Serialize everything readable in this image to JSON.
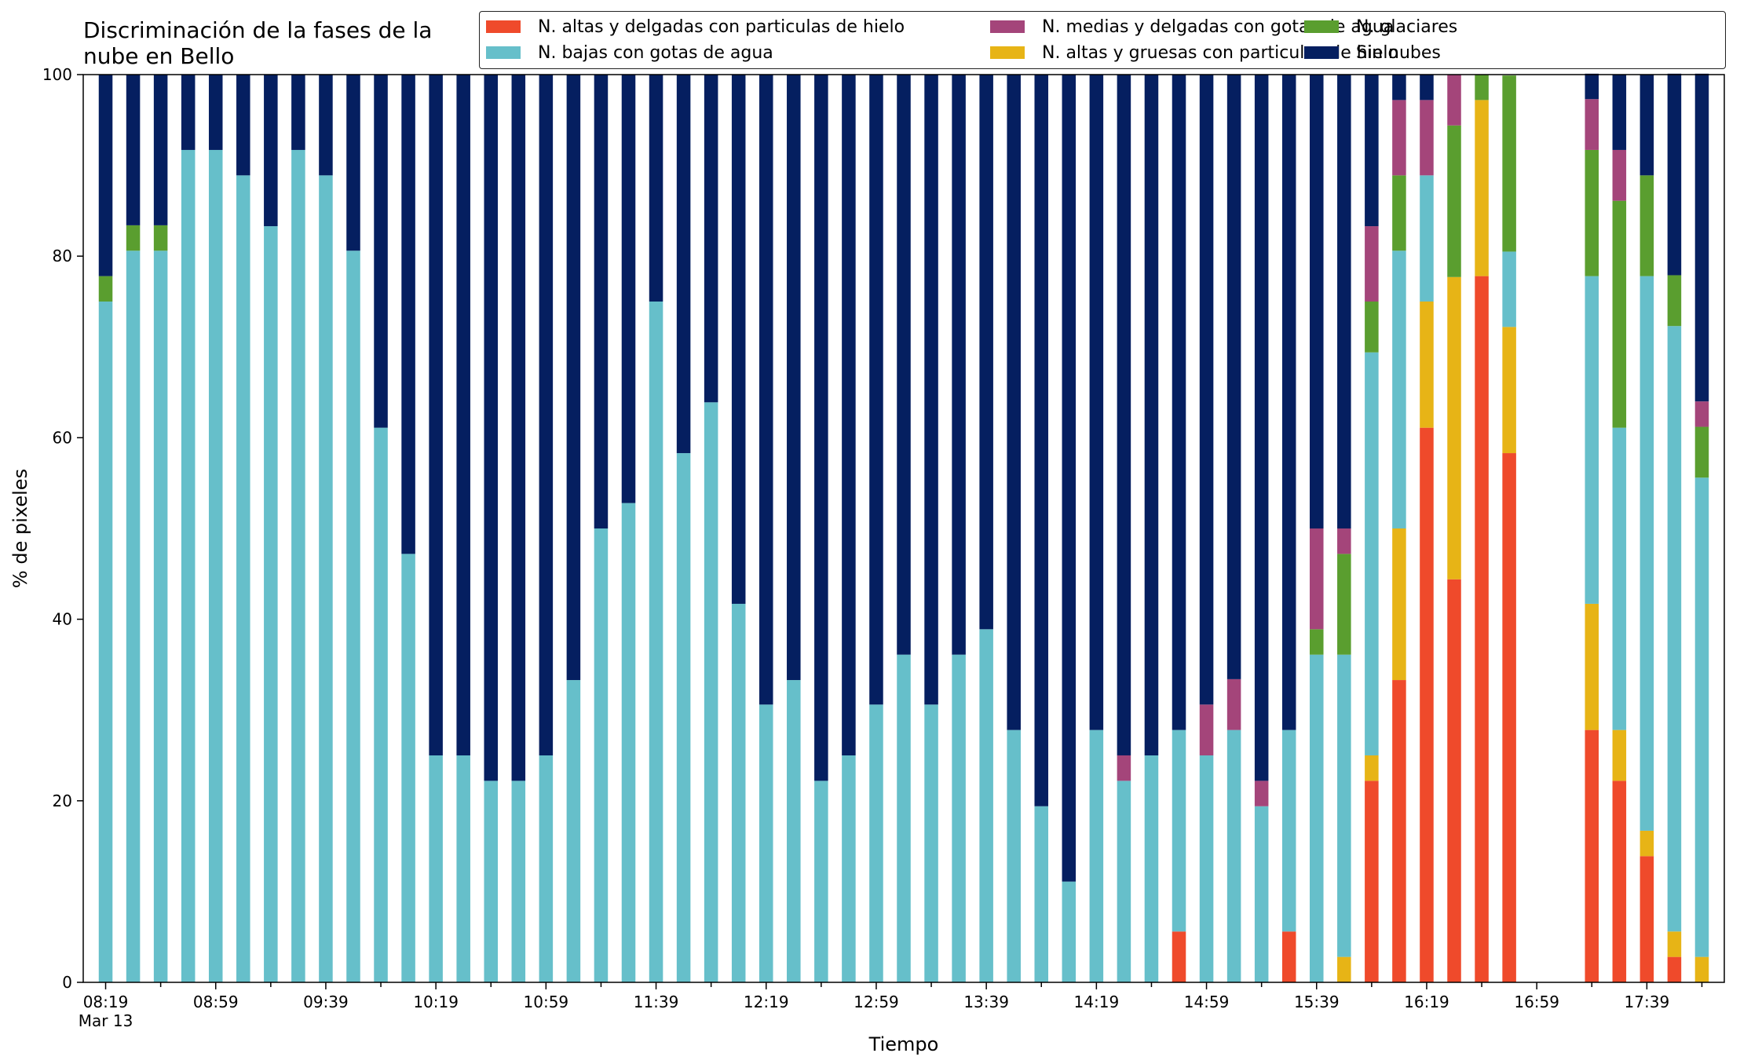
{
  "chart_data": {
    "type": "bar",
    "stacked": true,
    "title": "Discriminación de la fases de la\nnube en Bello",
    "xlabel": "Tiempo",
    "ylabel": "% de pixeles",
    "ylim": [
      0,
      100
    ],
    "yticks": [
      "0",
      "20",
      "40",
      "60",
      "80",
      "100"
    ],
    "xticks": [
      {
        "index": 0,
        "label": "08:19",
        "sublabel": "Mar 13"
      },
      {
        "index": 4,
        "label": "08:59"
      },
      {
        "index": 8,
        "label": "09:39"
      },
      {
        "index": 12,
        "label": "10:19"
      },
      {
        "index": 16,
        "label": "10:59"
      },
      {
        "index": 20,
        "label": "11:39"
      },
      {
        "index": 24,
        "label": "12:19"
      },
      {
        "index": 28,
        "label": "12:59"
      },
      {
        "index": 32,
        "label": "13:39"
      },
      {
        "index": 36,
        "label": "14:19"
      },
      {
        "index": 40,
        "label": "14:59"
      },
      {
        "index": 44,
        "label": "15:39"
      },
      {
        "index": 48,
        "label": "16:19"
      },
      {
        "index": 52,
        "label": "16:59"
      },
      {
        "index": 56,
        "label": "17:39"
      }
    ],
    "x_slots": 59,
    "legend_position": "top-right",
    "series": [
      {
        "name": "N. altas y delgadas con particulas de hielo",
        "color": "#ef4a2b",
        "values": [
          0,
          0,
          0,
          0,
          0,
          0,
          0,
          0,
          0,
          0,
          0,
          0,
          0,
          0,
          0,
          0,
          0,
          0,
          0,
          0,
          0,
          0,
          0,
          0,
          0,
          0,
          0,
          0,
          0,
          0,
          0,
          0,
          0,
          0,
          0,
          0,
          0,
          0,
          0,
          5.6,
          0,
          0,
          0,
          5.6,
          0,
          0,
          22.2,
          33.3,
          61.1,
          44.4,
          77.8,
          58.3,
          null,
          null,
          27.8,
          22.2,
          13.9,
          2.8,
          0
        ]
      },
      {
        "name": "N. altas y gruesas con particulas de hielo",
        "color": "#e7b416",
        "values": [
          0,
          0,
          0,
          0,
          0,
          0,
          0,
          0,
          0,
          0,
          0,
          0,
          0,
          0,
          0,
          0,
          0,
          0,
          0,
          0,
          0,
          0,
          0,
          0,
          0,
          0,
          0,
          0,
          0,
          0,
          0,
          0,
          0,
          0,
          0,
          0,
          0,
          0,
          0,
          0,
          0,
          0,
          0,
          0,
          0,
          2.8,
          2.8,
          16.7,
          13.9,
          33.3,
          19.4,
          13.9,
          null,
          null,
          13.9,
          5.6,
          2.8,
          2.8,
          2.8
        ]
      },
      {
        "name": "N. bajas con gotas de agua",
        "color": "#66bfca",
        "values": [
          75,
          80.6,
          80.6,
          91.7,
          91.7,
          88.9,
          83.3,
          91.7,
          88.9,
          80.6,
          61.1,
          47.2,
          25,
          25,
          22.2,
          22.2,
          25,
          33.3,
          50,
          52.8,
          75,
          58.3,
          63.9,
          41.7,
          30.6,
          33.3,
          22.2,
          25,
          30.6,
          36.1,
          30.6,
          36.1,
          38.9,
          27.8,
          19.4,
          11.1,
          27.8,
          22.2,
          25,
          22.2,
          25,
          27.8,
          19.4,
          22.2,
          36.1,
          33.3,
          44.4,
          30.6,
          13.9,
          0,
          0,
          8.3,
          null,
          null,
          36.1,
          33.3,
          61.1,
          66.7,
          52.8
        ]
      },
      {
        "name": "N. glaciares",
        "color": "#5a9e2f",
        "values": [
          2.8,
          2.8,
          2.8,
          0,
          0,
          0,
          0,
          0,
          0,
          0,
          0,
          0,
          0,
          0,
          0,
          0,
          0,
          0,
          0,
          0,
          0,
          0,
          0,
          0,
          0,
          0,
          0,
          0,
          0,
          0,
          0,
          0,
          0,
          0,
          0,
          0,
          0,
          0,
          0,
          0,
          0,
          0,
          0,
          0,
          2.8,
          11.1,
          5.6,
          8.3,
          0,
          16.7,
          2.8,
          19.4,
          null,
          null,
          13.9,
          25,
          11.1,
          5.6,
          5.6
        ]
      },
      {
        "name": "N. medias y delgadas con gotas de agua",
        "color": "#a4457a",
        "values": [
          0,
          0,
          0,
          0,
          0,
          0,
          0,
          0,
          0,
          0,
          0,
          0,
          0,
          0,
          0,
          0,
          0,
          0,
          0,
          0,
          0,
          0,
          0,
          0,
          0,
          0,
          0,
          0,
          0,
          0,
          0,
          0,
          0,
          0,
          0,
          0,
          0,
          2.8,
          0,
          0,
          5.6,
          5.6,
          2.8,
          0,
          11.1,
          2.8,
          8.3,
          8.3,
          8.3,
          5.6,
          0,
          0,
          null,
          null,
          5.6,
          5.6,
          0,
          0,
          2.8
        ]
      },
      {
        "name": "Sin nubes",
        "color": "#051f60",
        "values": [
          22.2,
          16.6,
          16.6,
          8.3,
          8.3,
          11.1,
          16.7,
          8.3,
          11.1,
          19.4,
          38.9,
          52.8,
          75,
          75,
          77.8,
          77.8,
          75,
          66.7,
          50,
          47.2,
          25,
          41.7,
          36.1,
          58.3,
          69.4,
          66.7,
          77.8,
          75,
          69.4,
          63.9,
          69.4,
          63.9,
          61.1,
          72.2,
          80.6,
          88.9,
          72.2,
          75,
          75,
          72.2,
          69.4,
          66.6,
          77.8,
          72.2,
          50,
          50,
          16.7,
          2.8,
          2.8,
          0,
          0,
          0,
          null,
          null,
          2.8,
          8.3,
          11.1,
          22.2,
          36.1
        ]
      }
    ]
  }
}
